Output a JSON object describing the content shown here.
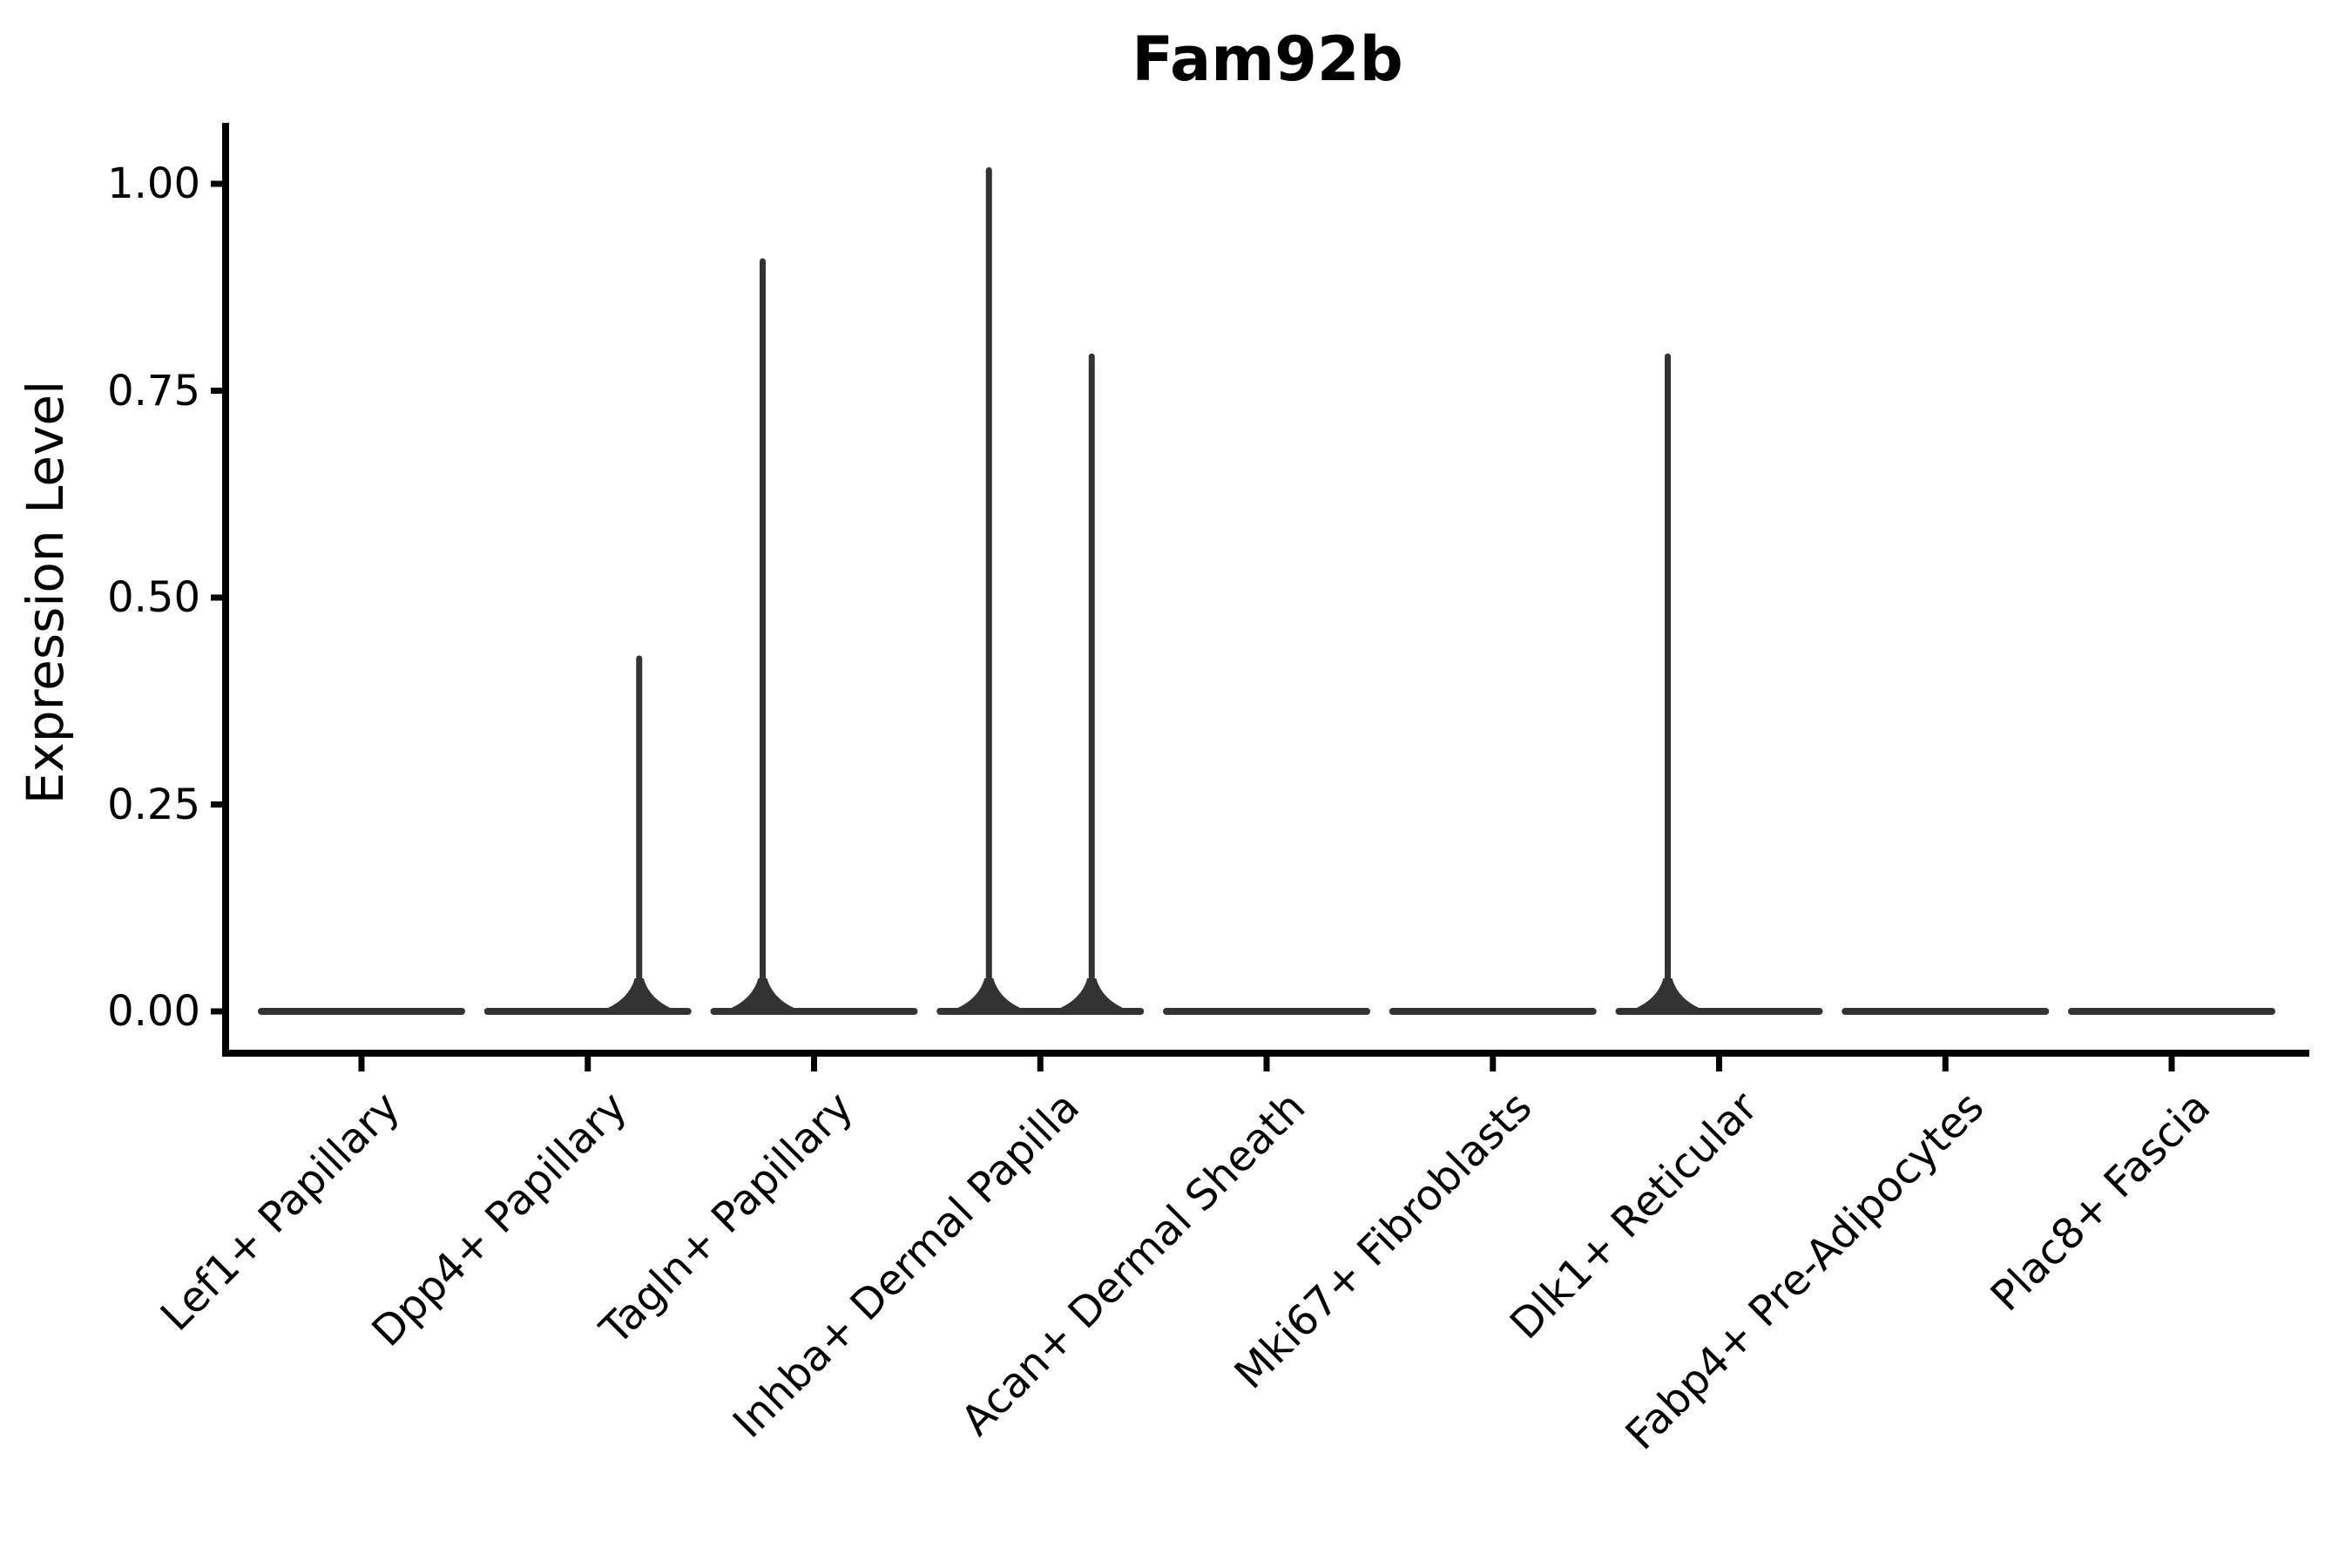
{
  "figure": {
    "title": "Fam92b",
    "y_axis_label": "Expression Level"
  },
  "colors": {
    "background": "#ffffff",
    "axis": "#000000",
    "text": "#000000",
    "violin": "#333333"
  },
  "chart_data": {
    "type": "violin",
    "title": "Fam92b",
    "xlabel": "",
    "ylabel": "Expression Level",
    "categories": [
      "Lef1+ Papillary",
      "Dpp4+ Papillary",
      "Tagln+ Papillary",
      "Inhba+ Dermal Papilla",
      "Acan+ Dermal Sheath",
      "Mki67+ Fibroblasts",
      "Dlk1+ Reticular",
      "Fabp4+ Pre-Adipocytes",
      "Plac8+ Fascia"
    ],
    "y_ticks": [
      "0.00",
      "0.25",
      "0.50",
      "0.75",
      "1.00"
    ],
    "y_tick_values": [
      0,
      0.25,
      0.5,
      0.75,
      1.0
    ],
    "ylim": [
      -0.05,
      1.07
    ],
    "grid": false,
    "legend": "none",
    "groups_per_category": 2,
    "description": "All violins are collapsed flat at expression 0 (bulk of cells express 0); thin vertical density spikes mark rare expressing cells. Each category holds two dodged sub-violins (left/right).",
    "violins": [
      {
        "category": "Lef1+ Papillary",
        "flat_at_zero": true,
        "max_expression": 0,
        "spikes": []
      },
      {
        "category": "Dpp4+ Papillary",
        "flat_at_zero": true,
        "max_expression": 0.43,
        "spikes": [
          {
            "group": "right",
            "value": 0.43
          }
        ]
      },
      {
        "category": "Tagln+ Papillary",
        "flat_at_zero": true,
        "max_expression": 0.91,
        "spikes": [
          {
            "group": "left",
            "value": 0.91
          }
        ]
      },
      {
        "category": "Inhba+ Dermal Papilla",
        "flat_at_zero": true,
        "max_expression": 1.02,
        "spikes": [
          {
            "group": "left",
            "value": 1.02
          },
          {
            "group": "right",
            "value": 0.795
          }
        ]
      },
      {
        "category": "Acan+ Dermal Sheath",
        "flat_at_zero": true,
        "max_expression": 0,
        "spikes": []
      },
      {
        "category": "Mki67+ Fibroblasts",
        "flat_at_zero": true,
        "max_expression": 0,
        "spikes": []
      },
      {
        "category": "Dlk1+ Reticular",
        "flat_at_zero": true,
        "max_expression": 0.795,
        "spikes": [
          {
            "group": "left",
            "value": 0.795
          }
        ]
      },
      {
        "category": "Fabp4+ Pre-Adipocytes",
        "flat_at_zero": true,
        "max_expression": 0,
        "spikes": []
      },
      {
        "category": "Plac8+ Fascia",
        "flat_at_zero": true,
        "max_expression": 0,
        "spikes": []
      }
    ]
  }
}
